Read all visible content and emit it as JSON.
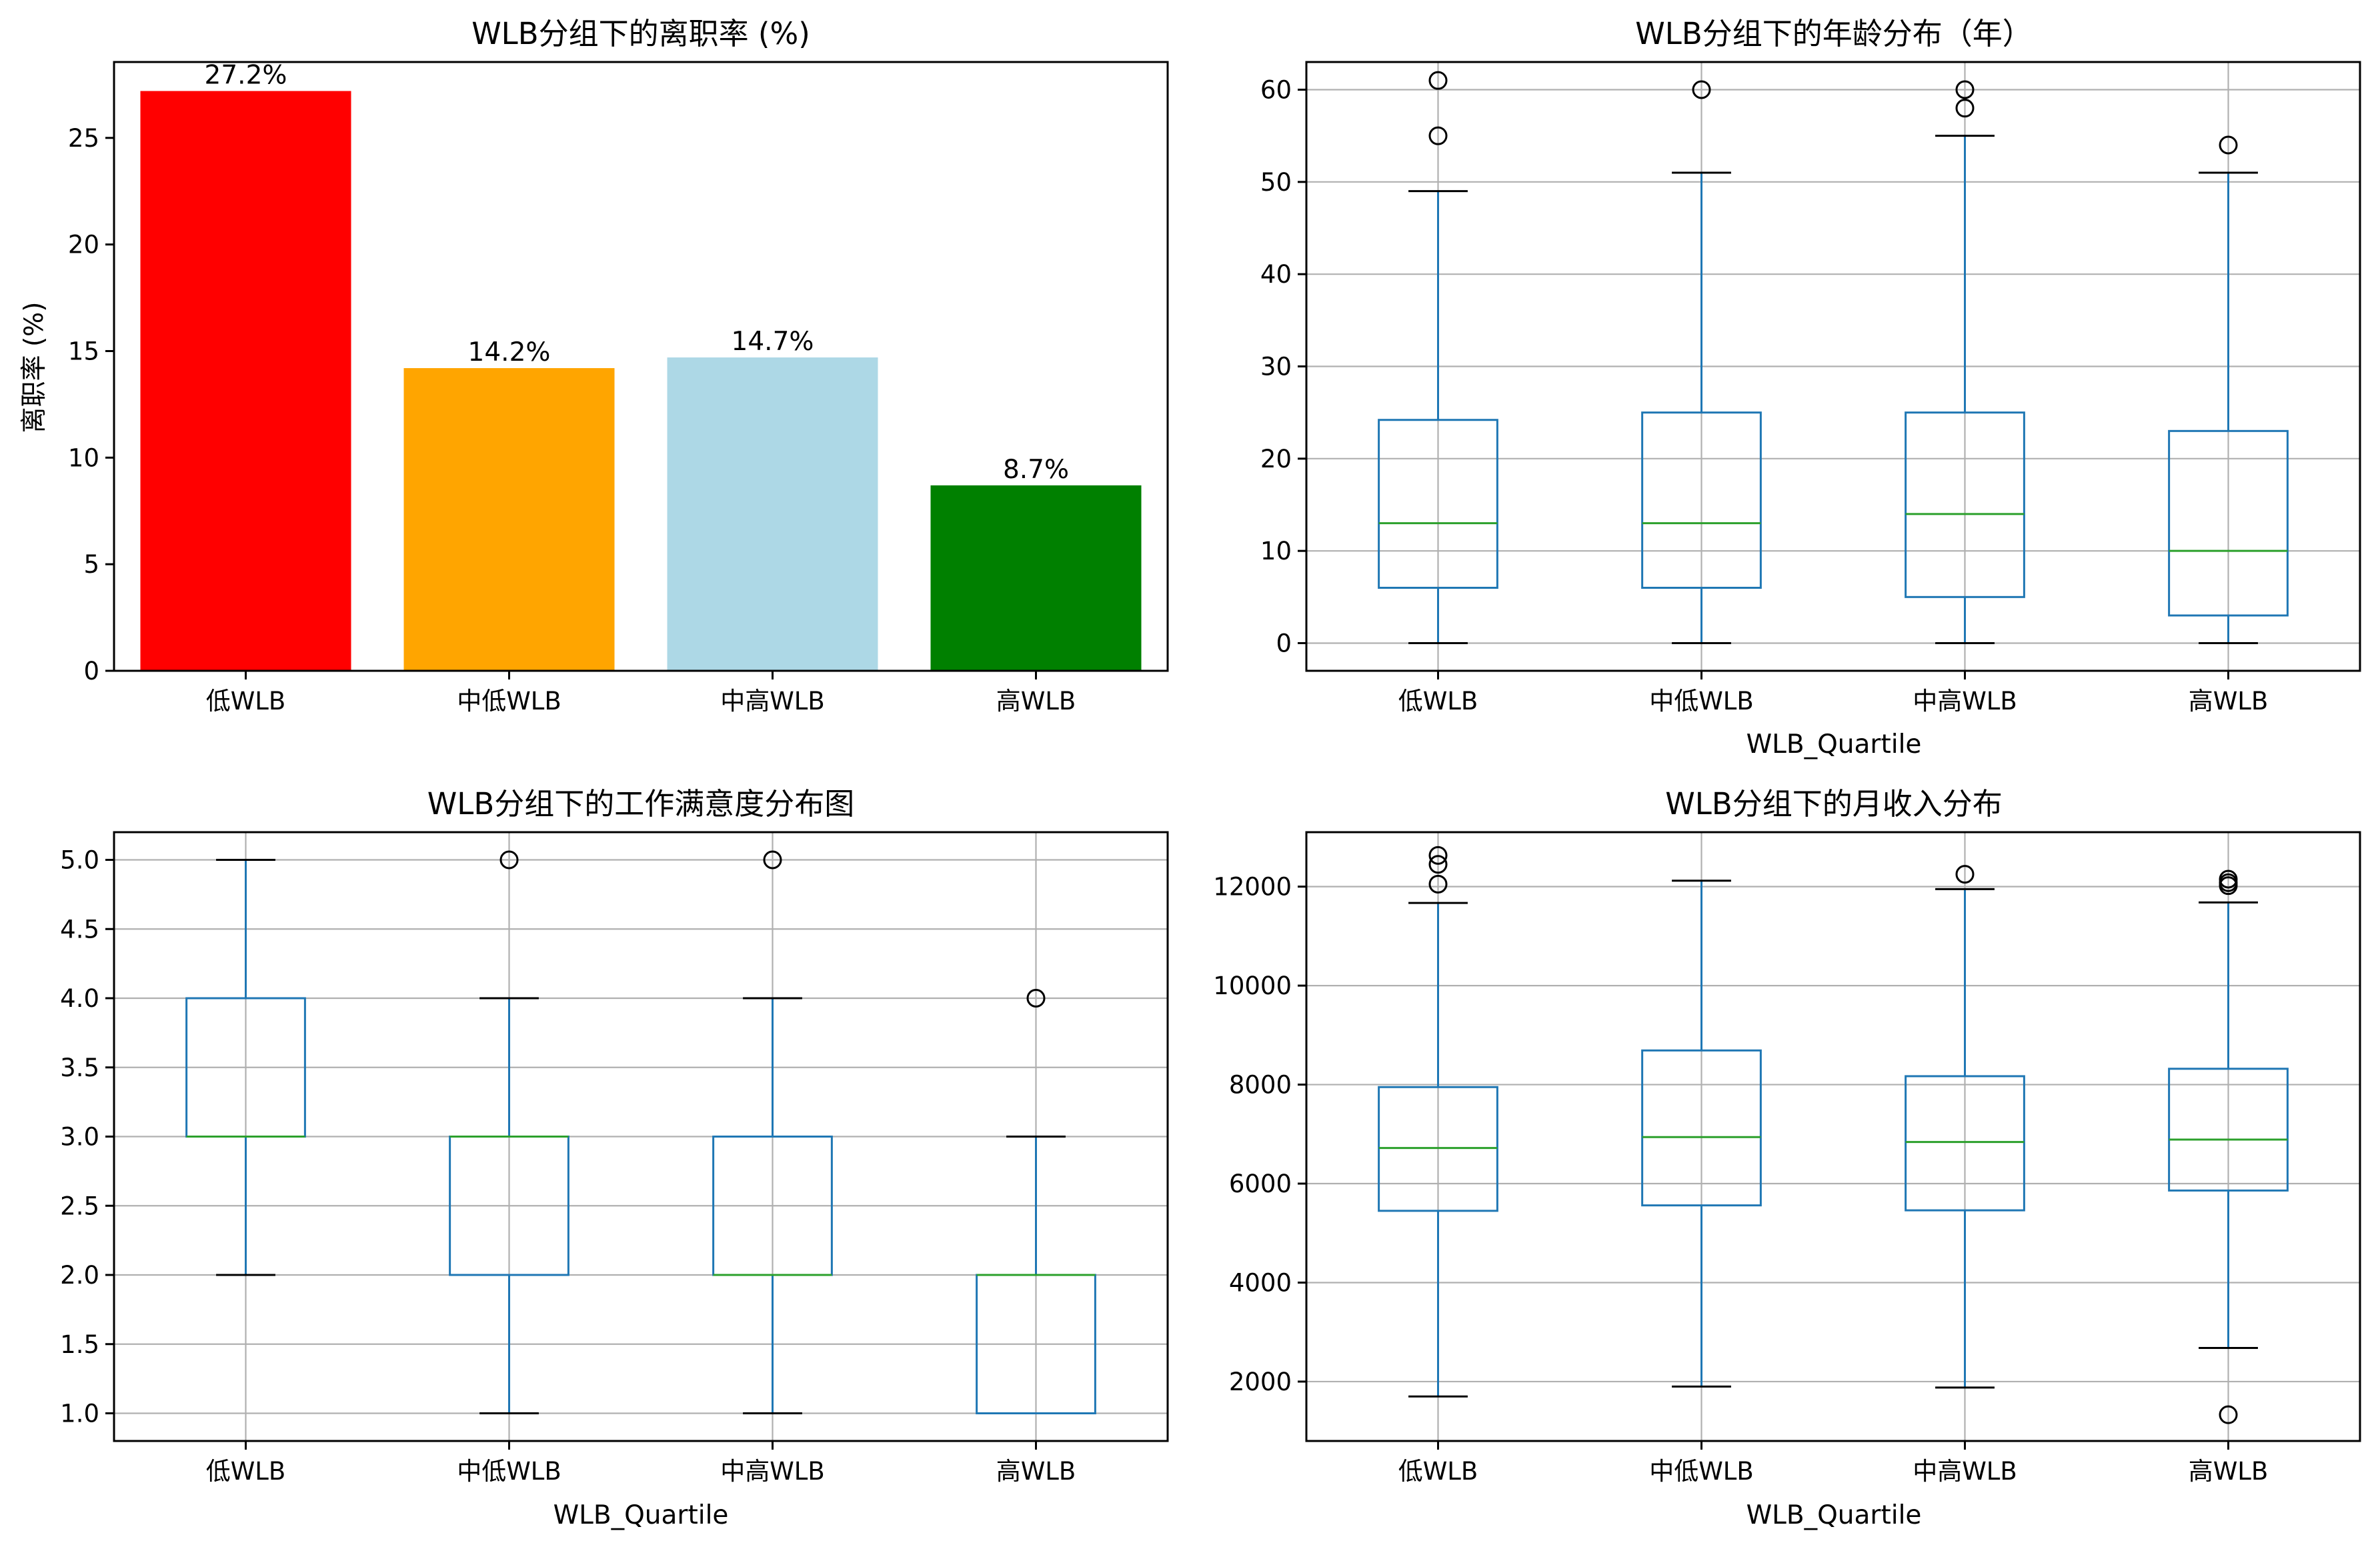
{
  "chart_data": [
    {
      "type": "bar",
      "title": "WLB分组下的离职率 (%)",
      "xlabel": "",
      "ylabel": "离职率 (%)",
      "categories": [
        "低WLB",
        "中低WLB",
        "中高WLB",
        "高WLB"
      ],
      "values": [
        27.2,
        14.2,
        14.7,
        8.7
      ],
      "data_labels": [
        "27.2%",
        "14.2%",
        "14.7%",
        "8.7%"
      ],
      "colors": [
        "#ff0000",
        "#ffa500",
        "#add8e6",
        "#008000"
      ],
      "ylim": [
        0,
        28.56
      ],
      "yticks": [
        0,
        5,
        10,
        15,
        20,
        25
      ],
      "grid": false
    },
    {
      "type": "box",
      "title": "WLB分组下的年龄分布（年）",
      "xlabel": "WLB_Quartile",
      "ylabel": "",
      "categories": [
        "低WLB",
        "中低WLB",
        "中高WLB",
        "高WLB"
      ],
      "ylim": [
        -3,
        63
      ],
      "yticks": [
        0,
        10,
        20,
        30,
        40,
        50,
        60
      ],
      "grid": true,
      "boxes": [
        {
          "whislo": 0,
          "q1": 6,
          "med": 13,
          "q3": 24.2,
          "whishi": 49,
          "fliers": [
            55,
            61
          ]
        },
        {
          "whislo": 0,
          "q1": 6,
          "med": 13,
          "q3": 25,
          "whishi": 51,
          "fliers": [
            60
          ]
        },
        {
          "whislo": 0,
          "q1": 5,
          "med": 14,
          "q3": 25,
          "whishi": 55,
          "fliers": [
            58,
            60
          ]
        },
        {
          "whislo": 0,
          "q1": 3,
          "med": 10,
          "q3": 23,
          "whishi": 51,
          "fliers": [
            54
          ]
        }
      ]
    },
    {
      "type": "box",
      "title": "WLB分组下的工作满意度分布图",
      "xlabel": "WLB_Quartile",
      "ylabel": "",
      "categories": [
        "低WLB",
        "中低WLB",
        "中高WLB",
        "高WLB"
      ],
      "ylim": [
        0.8,
        5.2
      ],
      "yticks": [
        1.0,
        1.5,
        2.0,
        2.5,
        3.0,
        3.5,
        4.0,
        4.5,
        5.0
      ],
      "ytick_labels": [
        "1.0",
        "1.5",
        "2.0",
        "2.5",
        "3.0",
        "3.5",
        "4.0",
        "4.5",
        "5.0"
      ],
      "grid": true,
      "boxes": [
        {
          "whislo": 2,
          "q1": 3,
          "med": 3,
          "q3": 4,
          "whishi": 5,
          "fliers": []
        },
        {
          "whislo": 1,
          "q1": 2,
          "med": 3,
          "q3": 3,
          "whishi": 4,
          "fliers": [
            5
          ]
        },
        {
          "whislo": 1,
          "q1": 2,
          "med": 2,
          "q3": 3,
          "whishi": 4,
          "fliers": [
            5
          ]
        },
        {
          "whislo": 1,
          "q1": 1,
          "med": 2,
          "q3": 2,
          "whishi": 3,
          "fliers": [
            4
          ]
        }
      ]
    },
    {
      "type": "box",
      "title": "WLB分组下的月收入分布",
      "xlabel": "WLB_Quartile",
      "ylabel": "",
      "categories": [
        "低WLB",
        "中低WLB",
        "中高WLB",
        "高WLB"
      ],
      "ylim": [
        800,
        13100
      ],
      "yticks": [
        2000,
        4000,
        6000,
        8000,
        10000,
        12000
      ],
      "grid": true,
      "boxes": [
        {
          "whislo": 1700,
          "q1": 5450,
          "med": 6720,
          "q3": 7950,
          "whishi": 11670,
          "fliers": [
            12050,
            12450,
            12630
          ]
        },
        {
          "whislo": 1900,
          "q1": 5560,
          "med": 6940,
          "q3": 8690,
          "whishi": 12120,
          "fliers": []
        },
        {
          "whislo": 1880,
          "q1": 5460,
          "med": 6840,
          "q3": 8170,
          "whishi": 11950,
          "fliers": [
            12250
          ]
        },
        {
          "whislo": 2680,
          "q1": 5860,
          "med": 6890,
          "q3": 8320,
          "whishi": 11680,
          "fliers": [
            1330,
            12020,
            12080,
            12150
          ]
        }
      ]
    }
  ]
}
